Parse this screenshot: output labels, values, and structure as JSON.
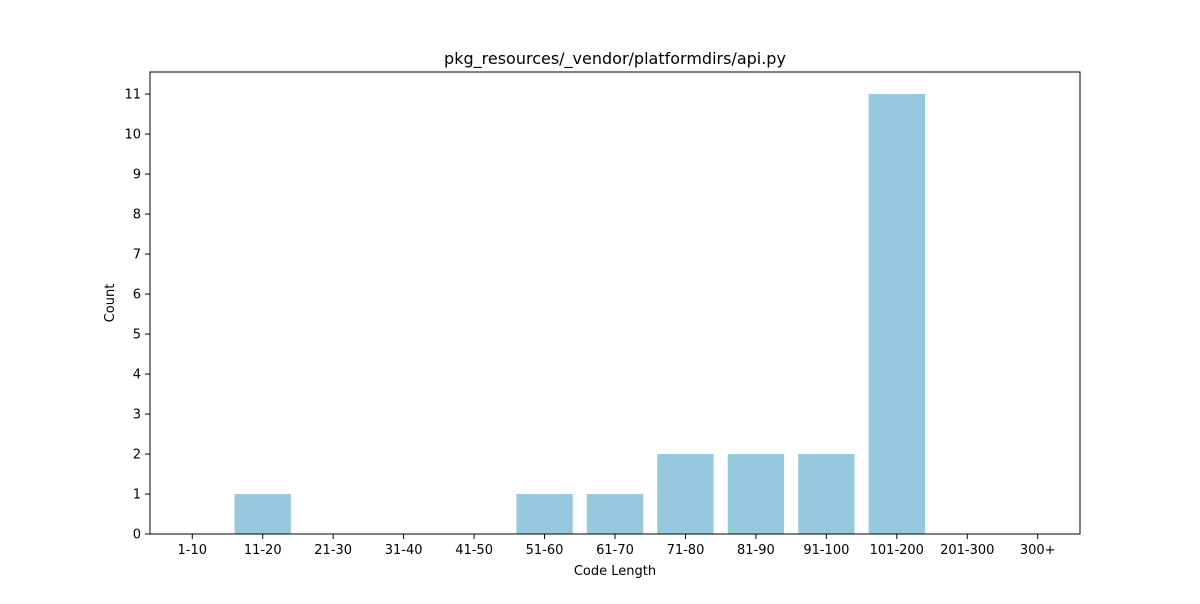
{
  "chart_data": {
    "type": "bar",
    "title": "pkg_resources/_vendor/platformdirs/api.py",
    "xlabel": "Code Length",
    "ylabel": "Count",
    "categories": [
      "1-10",
      "11-20",
      "21-30",
      "31-40",
      "41-50",
      "51-60",
      "61-70",
      "71-80",
      "81-90",
      "91-100",
      "101-200",
      "201-300",
      "300+"
    ],
    "values": [
      0,
      1,
      0,
      0,
      0,
      1,
      1,
      2,
      2,
      2,
      11,
      0,
      0
    ],
    "ylim": [
      0,
      11.55
    ],
    "yticks": [
      0,
      1,
      2,
      3,
      4,
      5,
      6,
      7,
      8,
      9,
      10,
      11
    ],
    "grid": false,
    "bar_color": "#96c9dd"
  }
}
